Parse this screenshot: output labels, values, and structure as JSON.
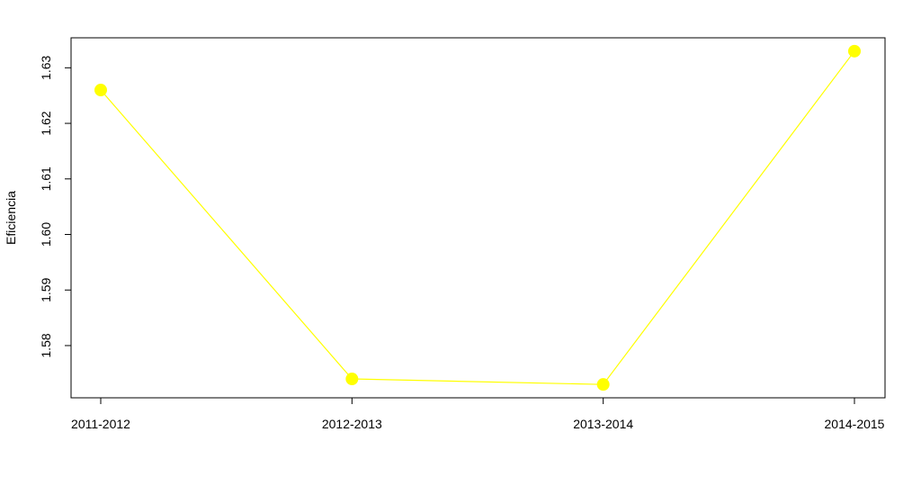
{
  "chart_data": {
    "type": "line",
    "title": "",
    "xlabel": "",
    "ylabel": "Eficiencia",
    "categories": [
      "2011-2012",
      "2012-2013",
      "2013-2014",
      "2014-2015"
    ],
    "series": [
      {
        "name": "Eficiencia",
        "values": [
          1.626,
          1.574,
          1.573,
          1.633
        ]
      }
    ],
    "y_ticks": [
      1.58,
      1.59,
      1.6,
      1.61,
      1.62,
      1.63
    ],
    "y_tick_labels": [
      "1.58",
      "1.59",
      "1.60",
      "1.61",
      "1.62",
      "1.63"
    ],
    "ylim": [
      1.5706,
      1.6354
    ],
    "grid": false,
    "legend": "none",
    "colors": {
      "series": "#ffff00",
      "axis": "#000000",
      "background": "#ffffff"
    }
  }
}
